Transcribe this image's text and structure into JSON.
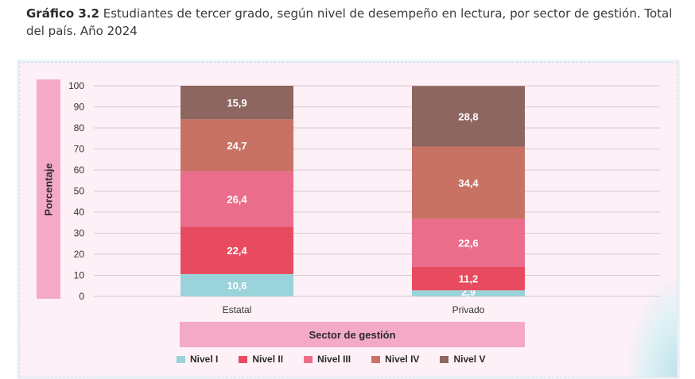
{
  "caption": {
    "label": "Gráfico 3.2",
    "text": " Estudiantes de tercer grado, según nivel de desempeño en lectura, por sector de gestión. Total del país. Año 2024"
  },
  "chart_data": {
    "type": "bar",
    "stacked": true,
    "title": "",
    "ylabel": "Porcentaje",
    "xlabel": "Sector de gestión",
    "ylim": [
      0,
      100
    ],
    "yticks": [
      0,
      10,
      20,
      30,
      40,
      50,
      60,
      70,
      80,
      90,
      100
    ],
    "grid": true,
    "legend_position": "bottom",
    "categories": [
      "Estatal",
      "Privado"
    ],
    "series": [
      {
        "name": "Nivel I",
        "color": "#9ad3da",
        "values": [
          10.6,
          2.9
        ],
        "labels": [
          "10,6",
          "2,9"
        ]
      },
      {
        "name": "Nivel II",
        "color": "#e84b5f",
        "values": [
          22.4,
          11.2
        ],
        "labels": [
          "22,4",
          "11,2"
        ]
      },
      {
        "name": "Nivel III",
        "color": "#eb6d8c",
        "values": [
          26.4,
          22.6
        ],
        "labels": [
          "26,4",
          "22,6"
        ]
      },
      {
        "name": "Nivel IV",
        "color": "#c77265",
        "values": [
          24.7,
          34.4
        ],
        "labels": [
          "24,7",
          "34,4"
        ]
      },
      {
        "name": "Nivel V",
        "color": "#8e6660",
        "values": [
          15.9,
          28.8
        ],
        "labels": [
          "15,9",
          "28,8"
        ]
      }
    ]
  }
}
